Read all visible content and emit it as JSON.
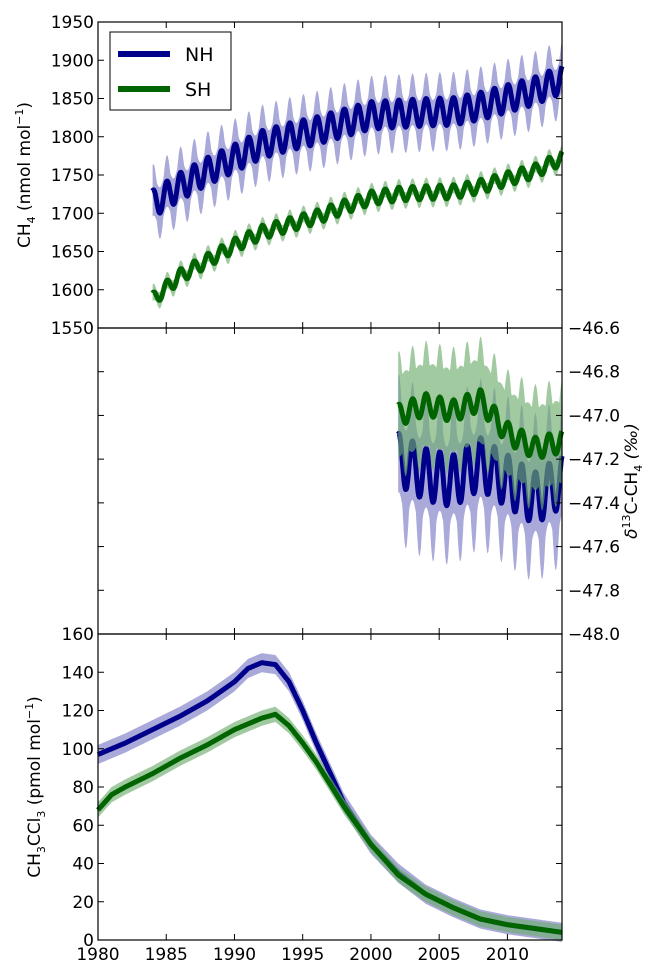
{
  "colors": {
    "nh": "#00008b",
    "sh": "#006400",
    "nh_band": "#7b7bc6",
    "sh_band": "#6fae6f"
  },
  "legend": {
    "entries": [
      "NH",
      "SH"
    ]
  },
  "x_ticks": [
    "1980",
    "1985",
    "1990",
    "1995",
    "2000",
    "2005",
    "2010"
  ],
  "chart_data": [
    {
      "type": "line",
      "panel": "top",
      "ylabel": "CH4 (nmol mol-1)",
      "ylabel_parts": {
        "main": "CH",
        "sub": "4",
        "unit_pre": " (nmol mol",
        "sup": "−1",
        "unit_post": ")"
      },
      "xlim": [
        1980,
        2014
      ],
      "ylim": [
        1550,
        1950
      ],
      "y_ticks": [
        "1550",
        "1600",
        "1650",
        "1700",
        "1750",
        "1800",
        "1850",
        "1900",
        "1950"
      ],
      "legend_position": "top-left",
      "series": [
        {
          "name": "NH",
          "x": [
            1984,
            1986,
            1988,
            1990,
            1992,
            1994,
            1996,
            1998,
            2000,
            2002,
            2004,
            2006,
            2008,
            2010,
            2012,
            2014
          ],
          "y": [
            1712,
            1735,
            1755,
            1772,
            1790,
            1800,
            1808,
            1818,
            1828,
            1830,
            1832,
            1833,
            1840,
            1850,
            1860,
            1875
          ],
          "seasonal_amplitude": 18,
          "band_halfwidth": 25
        },
        {
          "name": "SH",
          "x": [
            1984,
            1986,
            1988,
            1990,
            1992,
            1994,
            1996,
            1998,
            2000,
            2002,
            2004,
            2006,
            2008,
            2010,
            2012,
            2014
          ],
          "y": [
            1587,
            1618,
            1638,
            1658,
            1675,
            1685,
            1695,
            1708,
            1720,
            1725,
            1727,
            1728,
            1735,
            1745,
            1755,
            1772
          ],
          "seasonal_amplitude": 9,
          "band_halfwidth": 8
        }
      ]
    },
    {
      "type": "line",
      "panel": "middle",
      "ylabel": "δ13C-CH4 (‰)",
      "ylabel_parts": {
        "main": "δ",
        "sup": "13",
        "mid": "C-CH",
        "sub": "4",
        "unit": " (‰)"
      },
      "xlim": [
        1980,
        2014
      ],
      "ylim": [
        -48.0,
        -46.6
      ],
      "y_ticks": [
        "−48.0",
        "−47.8",
        "−47.6",
        "−47.4",
        "−47.2",
        "−47.0",
        "−46.8",
        "−46.6"
      ],
      "series": [
        {
          "name": "NH",
          "x": [
            2002,
            2004,
            2006,
            2008,
            2010,
            2012,
            2014
          ],
          "y": [
            -47.2,
            -47.27,
            -47.3,
            -47.22,
            -47.3,
            -47.38,
            -47.3
          ],
          "seasonal_amplitude": 0.12,
          "band_halfwidth": 0.2
        },
        {
          "name": "SH",
          "x": [
            2002,
            2004,
            2006,
            2008,
            2010,
            2012,
            2014
          ],
          "y": [
            -47.0,
            -46.95,
            -46.98,
            -46.93,
            -47.08,
            -47.15,
            -47.12
          ],
          "seasonal_amplitude": 0.05,
          "band_halfwidth": 0.18
        }
      ]
    },
    {
      "type": "line",
      "panel": "bottom",
      "ylabel": "CH3CCl3 (pmol mol-1)",
      "ylabel_parts": {
        "a": "CH",
        "sub1": "3",
        "b": "CCl",
        "sub2": "3",
        "unit_pre": " (pmol mol",
        "sup": "−1",
        "unit_post": ")"
      },
      "xlim": [
        1980,
        2014
      ],
      "ylim": [
        0,
        160
      ],
      "y_ticks": [
        "0",
        "20",
        "40",
        "60",
        "80",
        "100",
        "120",
        "140",
        "160"
      ],
      "series": [
        {
          "name": "NH",
          "x": [
            1980,
            1982,
            1984,
            1986,
            1988,
            1990,
            1991,
            1992,
            1993,
            1994,
            1995,
            1996,
            1998,
            2000,
            2002,
            2004,
            2006,
            2008,
            2010,
            2012,
            2014
          ],
          "y": [
            97,
            103,
            110,
            117,
            125,
            135,
            142,
            145,
            144,
            135,
            120,
            103,
            72,
            50,
            35,
            24,
            17,
            11,
            8,
            6,
            4
          ],
          "band_halfwidth": 5
        },
        {
          "name": "SH",
          "x": [
            1980,
            1981,
            1982,
            1984,
            1986,
            1988,
            1990,
            1992,
            1993,
            1994,
            1995,
            1996,
            1998,
            2000,
            2002,
            2004,
            2006,
            2008,
            2010,
            2012,
            2014
          ],
          "y": [
            68,
            76,
            80,
            87,
            95,
            102,
            110,
            116,
            118,
            112,
            103,
            93,
            70,
            50,
            34,
            24,
            17,
            11,
            8,
            6,
            4
          ],
          "band_halfwidth": 4
        }
      ]
    }
  ]
}
